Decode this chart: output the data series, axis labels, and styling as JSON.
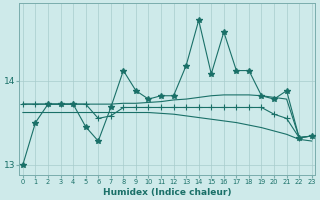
{
  "xlabel": "Humidex (Indice chaleur)",
  "bg_color": "#ceeaea",
  "line_color": "#1a7068",
  "grid_color": "#a8cccc",
  "x_values": [
    0,
    1,
    2,
    3,
    4,
    5,
    6,
    7,
    8,
    9,
    10,
    11,
    12,
    13,
    14,
    15,
    16,
    17,
    18,
    19,
    20,
    21,
    22,
    23
  ],
  "line1_starred": [
    13.0,
    13.5,
    13.72,
    13.72,
    13.72,
    13.45,
    13.28,
    13.68,
    14.12,
    13.88,
    13.78,
    13.82,
    13.82,
    14.18,
    14.72,
    14.08,
    14.58,
    14.12,
    14.12,
    13.82,
    13.78,
    13.88,
    13.32,
    13.34
  ],
  "line2_plus": [
    13.72,
    13.72,
    13.72,
    13.72,
    13.72,
    13.72,
    13.55,
    13.58,
    13.68,
    13.68,
    13.68,
    13.68,
    13.68,
    13.68,
    13.68,
    13.68,
    13.68,
    13.68,
    13.68,
    13.68,
    13.6,
    13.55,
    13.32,
    13.34
  ],
  "line3_smooth": [
    13.72,
    13.72,
    13.72,
    13.72,
    13.72,
    13.72,
    13.72,
    13.72,
    13.73,
    13.73,
    13.74,
    13.75,
    13.77,
    13.78,
    13.8,
    13.82,
    13.83,
    13.83,
    13.83,
    13.82,
    13.8,
    13.78,
    13.32,
    13.34
  ],
  "line4_descend": [
    13.62,
    13.62,
    13.62,
    13.62,
    13.62,
    13.62,
    13.62,
    13.62,
    13.62,
    13.62,
    13.62,
    13.61,
    13.6,
    13.58,
    13.56,
    13.54,
    13.52,
    13.5,
    13.47,
    13.44,
    13.4,
    13.36,
    13.3,
    13.28
  ],
  "ylim": [
    12.88,
    14.92
  ],
  "yticks": [
    13,
    14
  ],
  "xticks": [
    0,
    1,
    2,
    3,
    4,
    5,
    6,
    7,
    8,
    9,
    10,
    11,
    12,
    13,
    14,
    15,
    16,
    17,
    18,
    19,
    20,
    21,
    22,
    23
  ]
}
